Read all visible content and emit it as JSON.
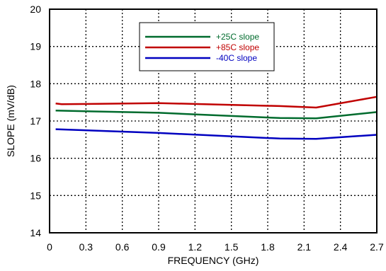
{
  "chart_data": {
    "type": "line",
    "xlabel": "FREQUENCY (GHz)",
    "ylabel": "SLOPE (mV/dB)",
    "xlim": [
      0,
      2.7
    ],
    "ylim": [
      14,
      20
    ],
    "x_ticks": [
      0,
      0.3,
      0.6,
      0.9,
      1.2,
      1.5,
      1.8,
      2.1,
      2.4,
      2.7
    ],
    "x_tick_labels": [
      "0",
      "0.3",
      "0.6",
      "0.9",
      "1.2",
      "1.5",
      "1.8",
      "2.1",
      "2.4",
      "2.7"
    ],
    "y_ticks": [
      14,
      15,
      16,
      17,
      18,
      19,
      20
    ],
    "y_tick_labels": [
      "14",
      "15",
      "16",
      "17",
      "18",
      "19",
      "20"
    ],
    "grid": "dotted",
    "legend_position": "top-center",
    "series": [
      {
        "name": "+25C slope",
        "color": "#006b2d",
        "x": [
          0.05,
          0.9,
          1.9,
          2.2,
          2.7
        ],
        "y": [
          17.28,
          17.22,
          17.08,
          17.07,
          17.24
        ]
      },
      {
        "name": "+85C slope",
        "color": "#c00000",
        "x": [
          0.05,
          0.1,
          0.9,
          1.9,
          2.2,
          2.7
        ],
        "y": [
          17.47,
          17.45,
          17.48,
          17.4,
          17.36,
          17.65
        ]
      },
      {
        "name": "-40C slope",
        "color": "#0000c0",
        "x": [
          0.05,
          0.9,
          1.9,
          2.2,
          2.7
        ],
        "y": [
          16.78,
          16.68,
          16.53,
          16.52,
          16.63
        ]
      }
    ]
  }
}
